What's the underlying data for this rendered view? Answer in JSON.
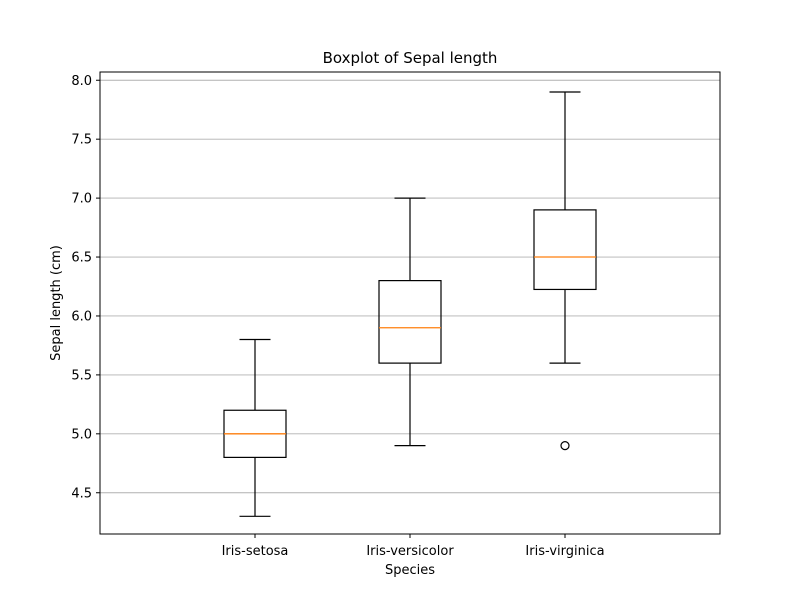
{
  "chart_data": {
    "type": "box",
    "title": "Boxplot of Sepal length",
    "xlabel": "Species",
    "ylabel": "Sepal length (cm)",
    "categories": [
      "Iris-setosa",
      "Iris-versicolor",
      "Iris-virginica"
    ],
    "ylim": [
      4.15,
      8.07
    ],
    "yticks": [
      4.5,
      5.0,
      5.5,
      6.0,
      6.5,
      7.0,
      7.5,
      8.0
    ],
    "ytick_labels": [
      "4.5",
      "5.0",
      "5.5",
      "6.0",
      "6.5",
      "7.0",
      "7.5",
      "8.0"
    ],
    "grid": "horizontal",
    "boxes": [
      {
        "category": "Iris-setosa",
        "whisker_low": 4.3,
        "q1": 4.8,
        "median": 5.0,
        "q3": 5.2,
        "whisker_high": 5.8,
        "outliers": []
      },
      {
        "category": "Iris-versicolor",
        "whisker_low": 4.9,
        "q1": 5.6,
        "median": 5.9,
        "q3": 6.3,
        "whisker_high": 7.0,
        "outliers": []
      },
      {
        "category": "Iris-virginica",
        "whisker_low": 5.6,
        "q1": 6.225,
        "median": 6.5,
        "q3": 6.9,
        "whisker_high": 7.9,
        "outliers": [
          4.9
        ]
      }
    ],
    "colors": {
      "box": "#000000",
      "median": "#ff7f0e",
      "grid": "#b0b0b0"
    }
  }
}
